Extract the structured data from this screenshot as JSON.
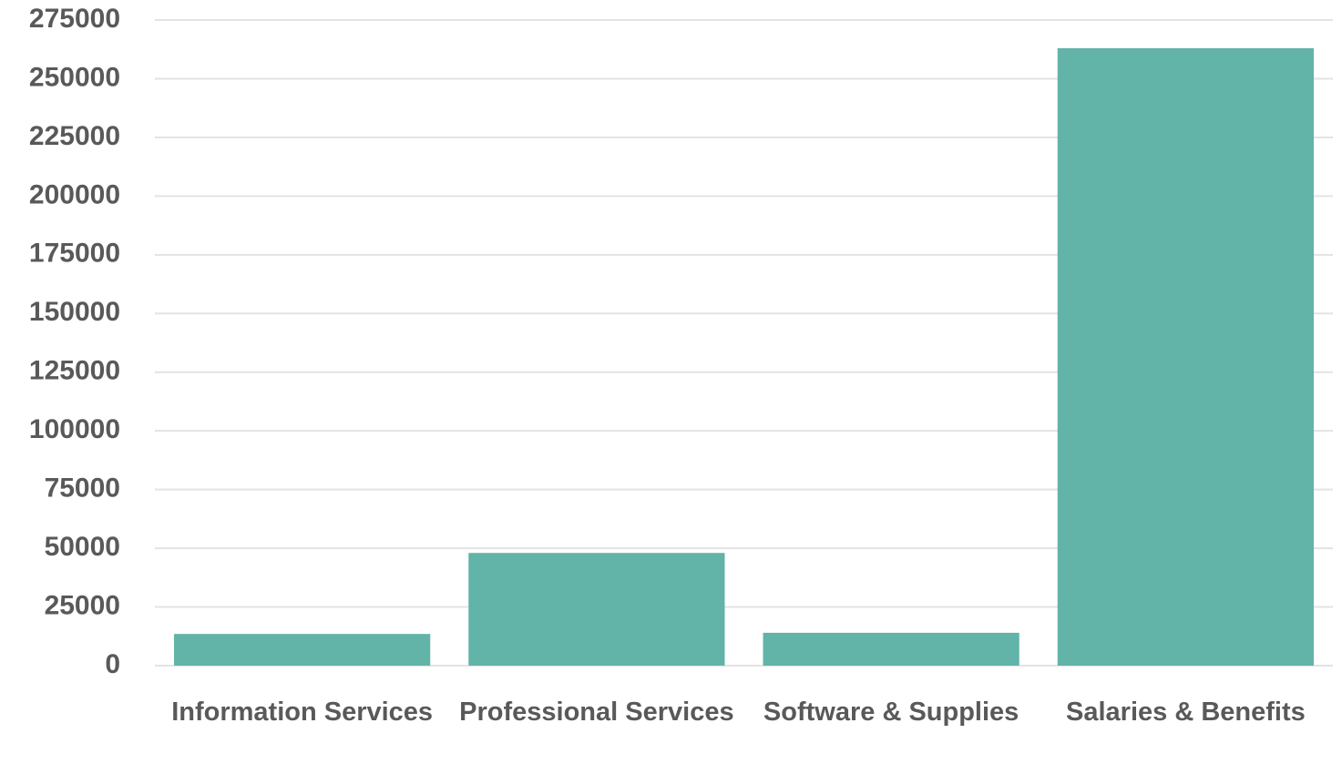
{
  "chart_data": {
    "type": "bar",
    "categories": [
      "Information Services",
      "Professional Services",
      "Software & Supplies",
      "Salaries & Benefits"
    ],
    "values": [
      13500,
      48000,
      14000,
      263000
    ],
    "color": "#62b3a8",
    "ylim": [
      0,
      275000
    ],
    "yticks": [
      0,
      25000,
      50000,
      75000,
      100000,
      125000,
      150000,
      175000,
      200000,
      225000,
      250000,
      275000
    ],
    "grid": true
  }
}
